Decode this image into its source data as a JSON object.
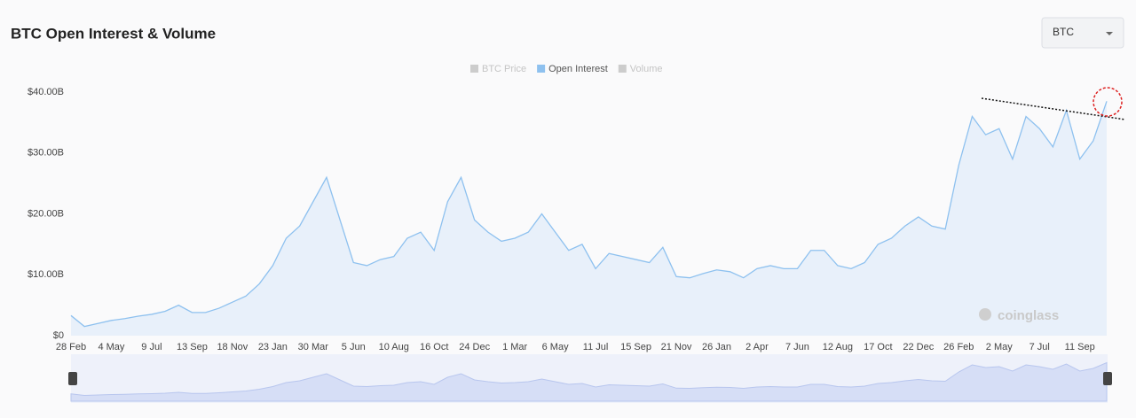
{
  "title": "BTC Open Interest & Volume",
  "selector": "BTC",
  "watermark": "coinglass",
  "chart_data": {
    "type": "area",
    "categories": [
      "28 Feb",
      null,
      null,
      "4 May",
      null,
      null,
      "9 Jul",
      null,
      null,
      "13 Sep",
      null,
      null,
      "18 Nov",
      null,
      null,
      "23 Jan",
      null,
      null,
      "30 Mar",
      null,
      null,
      "5 Jun",
      null,
      null,
      "10 Aug",
      null,
      null,
      "16 Oct",
      null,
      null,
      "24 Dec",
      null,
      null,
      "1 Mar",
      null,
      null,
      "6 May",
      null,
      null,
      "11 Jul",
      null,
      null,
      "15 Sep",
      null,
      null,
      "21 Nov",
      null,
      null,
      "26 Jan",
      null,
      null,
      "2 Apr",
      null,
      null,
      "7 Jun",
      null,
      null,
      "12 Aug",
      null,
      null,
      "17 Oct",
      null,
      null,
      "22 Dec",
      null,
      null,
      "26 Feb",
      null,
      null,
      "2 May",
      null,
      null,
      "7 Jul",
      null,
      null,
      "11 Sep",
      null,
      null
    ],
    "series": [
      {
        "name": "BTC Price",
        "color": "#cccccc",
        "hidden": true
      },
      {
        "name": "Open Interest",
        "color": "#8ec1ef",
        "values": [
          3.3,
          1.5,
          2.0,
          2.5,
          2.8,
          3.2,
          3.5,
          4.0,
          5.0,
          3.8,
          3.8,
          4.5,
          5.5,
          6.5,
          8.5,
          11.5,
          16,
          18,
          22,
          26,
          19,
          12,
          11.5,
          12.5,
          13,
          16,
          17,
          14,
          22,
          26,
          19,
          17,
          15.5,
          16,
          17,
          20,
          17,
          14,
          15,
          11,
          13.5,
          13,
          12.5,
          12,
          14.5,
          9.7,
          9.5,
          10.2,
          10.8,
          10.5,
          9.5,
          11,
          11.5,
          11,
          11,
          14,
          14,
          11.5,
          11,
          12,
          15,
          16,
          18,
          19.5,
          18,
          17.5,
          28,
          36,
          33,
          34,
          29,
          36,
          34,
          31,
          37,
          29,
          32,
          38.5
        ]
      },
      {
        "name": "Volume",
        "color": "#cccccc",
        "hidden": true
      }
    ],
    "ylim": [
      0,
      40
    ],
    "yticks": [
      {
        "value": 0,
        "label": "$0"
      },
      {
        "value": 10,
        "label": "$10.00B"
      },
      {
        "value": 20,
        "label": "$20.00B"
      },
      {
        "value": 30,
        "label": "$30.00B"
      },
      {
        "value": 40,
        "label": "$40.00B"
      }
    ],
    "grid": false
  }
}
